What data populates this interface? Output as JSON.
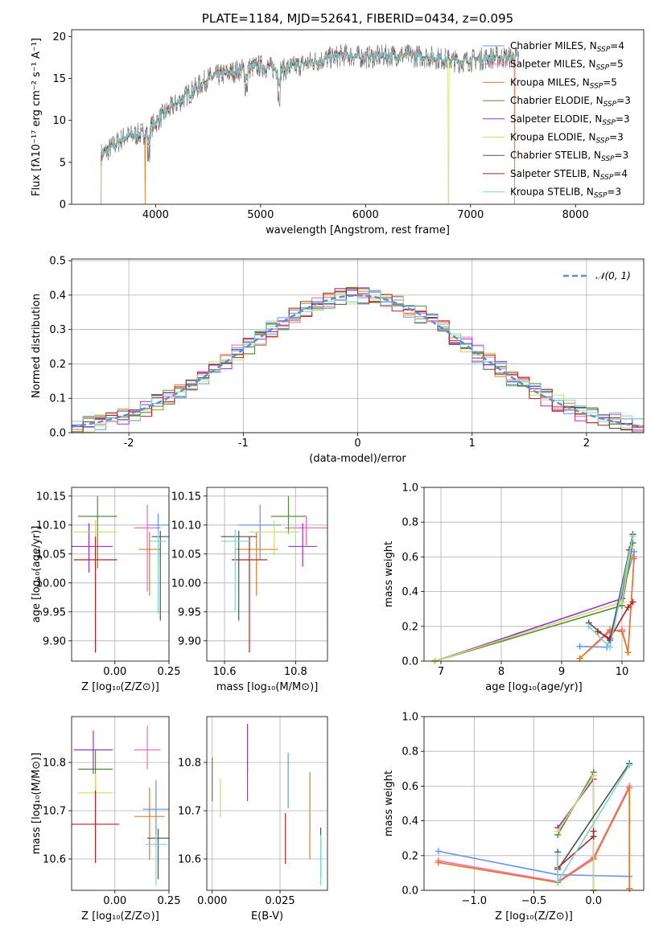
{
  "colors": {
    "Chabrier MILES": "#6495ed",
    "Salpeter MILES": "#ff69b4",
    "Kroupa MILES": "#e07b24",
    "Chabrier ELODIE": "#5a8a3c",
    "Salpeter ELODIE": "#9932cc",
    "Kroupa ELODIE": "#c8e066",
    "Chabrier STELIB": "#505050",
    "Salpeter STELIB": "#b22222",
    "Kroupa STELIB": "#7fd4d4",
    "normal": "#5b8fd6"
  },
  "chart_data": [
    {
      "id": "spectrum",
      "type": "line",
      "title": "PLATE=1184, MJD=52641, FIBERID=0434, z=0.095",
      "xlabel": "wavelength [Angstrom, rest frame]",
      "ylabel": "Flux [fλ10⁻¹⁷ erg cm⁻² s⁻¹ A⁻¹]",
      "xlim": [
        3200,
        8650
      ],
      "ylim": [
        0,
        20.8
      ],
      "xticks": [
        4000,
        5000,
        6000,
        7000,
        8000
      ],
      "yticks": [
        0,
        5,
        10,
        15,
        20
      ],
      "grid": false,
      "legend_position": "top-right",
      "legend": [
        {
          "name": "Chabrier MILES",
          "nssp": "4"
        },
        {
          "name": "Salpeter MILES",
          "nssp": "5"
        },
        {
          "name": "Kroupa MILES",
          "nssp": "5"
        },
        {
          "name": "Chabrier ELODIE",
          "nssp": "3"
        },
        {
          "name": "Salpeter ELODIE",
          "nssp": "3"
        },
        {
          "name": "Kroupa ELODIE",
          "nssp": "3"
        },
        {
          "name": "Chabrier STELIB",
          "nssp": "3"
        },
        {
          "name": "Salpeter STELIB",
          "nssp": "4"
        },
        {
          "name": "Kroupa STELIB",
          "nssp": "3"
        }
      ],
      "continuum": {
        "x": [
          3500,
          3700,
          3900,
          4100,
          4300,
          4500,
          4800,
          5000,
          5200,
          5500,
          5800,
          6000,
          6300,
          6600,
          6900,
          7200,
          7450
        ],
        "y": [
          6.0,
          8.0,
          8.5,
          11.0,
          13.0,
          15.0,
          16.0,
          16.5,
          16.0,
          17.0,
          17.8,
          17.5,
          17.8,
          17.6,
          17.0,
          17.5,
          17.5
        ]
      },
      "noise_amplitude": 1.4,
      "dropouts": [
        {
          "x": 3480,
          "series": "Kroupa MILES"
        },
        {
          "x": 3900,
          "series": "Kroupa MILES"
        },
        {
          "x": 6790,
          "series": "Kroupa ELODIE"
        },
        {
          "x": 7420,
          "series": "Kroupa MILES"
        }
      ]
    },
    {
      "id": "residuals",
      "type": "line",
      "xlabel": "(data-model)/error",
      "ylabel": "Normed distribution",
      "xlim": [
        -2.5,
        2.5
      ],
      "ylim": [
        0,
        0.505
      ],
      "xticks": [
        -2,
        -1,
        0,
        1,
        2
      ],
      "yticks": [
        0.0,
        0.1,
        0.2,
        0.3,
        0.4,
        0.5
      ],
      "grid": true,
      "legend_position": "top-right",
      "legend_label": "𝒩(0, 1)",
      "bin_width": 0.1,
      "histogram_noise": 0.025
    },
    {
      "id": "age_vs_Z",
      "type": "scatter",
      "xlabel": "Z [log₁₀(Z/Z⊙)]",
      "ylabel": "age  [log₁₀(age/yr)]",
      "xlim": [
        -0.2,
        0.25
      ],
      "ylim": [
        9.865,
        10.165
      ],
      "xticks": [
        0.0,
        0.25
      ],
      "xticklabels": [
        "0.00",
        "0.25"
      ],
      "yticks": [
        9.9,
        9.95,
        10.0,
        10.05,
        10.1,
        10.15
      ],
      "yticklabels": [
        "9.90",
        "9.95",
        "10.00",
        "10.05",
        "10.10",
        "10.15"
      ],
      "grid": true,
      "points": [
        {
          "series": "Chabrier MILES",
          "x": 0.2,
          "y": 10.1,
          "xerr": 0.05,
          "yerr": [
            0.07,
            0.02
          ]
        },
        {
          "series": "Salpeter MILES",
          "x": 0.15,
          "y": 10.095,
          "xerr": 0.06,
          "yerr": [
            0.11,
            0.04
          ]
        },
        {
          "series": "Kroupa MILES",
          "x": 0.16,
          "y": 10.058,
          "xerr": 0.05,
          "yerr": [
            0.08,
            0.03
          ]
        },
        {
          "series": "Chabrier ELODIE",
          "x": -0.08,
          "y": 10.115,
          "xerr": 0.09,
          "yerr": [
            0.09,
            0.035
          ]
        },
        {
          "series": "Salpeter ELODIE",
          "x": -0.12,
          "y": 10.063,
          "xerr": 0.11,
          "yerr": [
            0.045,
            0.04
          ]
        },
        {
          "series": "Kroupa ELODIE",
          "x": -0.09,
          "y": 10.088,
          "xerr": 0.1,
          "yerr": [
            0.06,
            0.02
          ]
        },
        {
          "series": "Chabrier STELIB",
          "x": 0.21,
          "y": 10.08,
          "xerr": 0.04,
          "yerr": [
            0.145,
            0.01
          ]
        },
        {
          "series": "Salpeter STELIB",
          "x": -0.09,
          "y": 10.04,
          "xerr": 0.1,
          "yerr": [
            0.16,
            0.04
          ]
        },
        {
          "series": "Kroupa STELIB",
          "x": 0.2,
          "y": 10.072,
          "xerr": 0.04,
          "yerr": [
            0.125,
            0.02
          ]
        }
      ]
    },
    {
      "id": "age_vs_mass",
      "type": "scatter",
      "xlabel": "mass [log₁₀(M/M⊙)]",
      "ylabel": "",
      "xlim": [
        10.55,
        10.89
      ],
      "ylim": [
        9.865,
        10.165
      ],
      "xticks": [
        10.6,
        10.8
      ],
      "xticklabels": [
        "10.6",
        "10.8"
      ],
      "yticks": [
        9.9,
        9.95,
        10.0,
        10.05,
        10.1,
        10.15
      ],
      "yticklabels": [
        "9.90",
        "9.95",
        "10.00",
        "10.05",
        "10.10",
        "10.15"
      ],
      "grid": true,
      "points": [
        {
          "series": "Chabrier MILES",
          "x": 10.7,
          "y": 10.1,
          "xerr": 0.06,
          "yerr": [
            0.06,
            0.035
          ]
        },
        {
          "series": "Salpeter MILES",
          "x": 10.83,
          "y": 10.095,
          "xerr": 0.06,
          "yerr": [
            0.03,
            0.02
          ]
        },
        {
          "series": "Kroupa MILES",
          "x": 10.69,
          "y": 10.058,
          "xerr": 0.06,
          "yerr": [
            0.08,
            0.03
          ]
        },
        {
          "series": "Chabrier ELODIE",
          "x": 10.78,
          "y": 10.115,
          "xerr": 0.05,
          "yerr": [
            0.03,
            0.035
          ]
        },
        {
          "series": "Salpeter ELODIE",
          "x": 10.82,
          "y": 10.063,
          "xerr": 0.04,
          "yerr": [
            0.035,
            0.04
          ]
        },
        {
          "series": "Kroupa ELODIE",
          "x": 10.74,
          "y": 10.088,
          "xerr": 0.07,
          "yerr": [
            0.04,
            0.02
          ]
        },
        {
          "series": "Chabrier STELIB",
          "x": 10.64,
          "y": 10.08,
          "xerr": 0.05,
          "yerr": [
            0.145,
            0.01
          ]
        },
        {
          "series": "Salpeter STELIB",
          "x": 10.67,
          "y": 10.04,
          "xerr": 0.05,
          "yerr": [
            0.16,
            0.04
          ]
        },
        {
          "series": "Kroupa STELIB",
          "x": 10.63,
          "y": 10.072,
          "xerr": 0.04,
          "yerr": [
            0.12,
            0.02
          ]
        }
      ]
    },
    {
      "id": "weight_vs_age",
      "type": "line",
      "xlabel": "age  [log₁₀(age/yr)]",
      "ylabel": "mass weight",
      "xlim": [
        6.72,
        10.36
      ],
      "ylim": [
        0,
        1.0
      ],
      "xticks": [
        7,
        8,
        9,
        10
      ],
      "xticklabels": [
        "7",
        "8",
        "9",
        "10"
      ],
      "yticks": [
        0.0,
        0.2,
        0.4,
        0.6,
        0.8,
        1.0
      ],
      "yticklabels": [
        "0.0",
        "0.2",
        "0.4",
        "0.6",
        "0.8",
        "1.0"
      ],
      "grid": true,
      "series": [
        {
          "name": "Chabrier MILES",
          "x": [
            9.3,
            9.75,
            10.2
          ],
          "y": [
            0.085,
            0.08,
            0.63
          ]
        },
        {
          "name": "Salpeter MILES",
          "x": [
            9.3,
            9.8,
            10.0,
            10.1,
            10.2
          ],
          "y": [
            0.015,
            0.17,
            0.18,
            0.05,
            0.6
          ]
        },
        {
          "name": "Kroupa MILES",
          "x": [
            9.3,
            9.8,
            10.0,
            10.1,
            10.2
          ],
          "y": [
            0.015,
            0.18,
            0.17,
            0.05,
            0.59
          ]
        },
        {
          "name": "Chabrier ELODIE",
          "x": [
            6.9,
            10.0,
            10.18
          ],
          "y": [
            0.0,
            0.32,
            0.68
          ]
        },
        {
          "name": "Salpeter ELODIE",
          "x": [
            6.9,
            10.0,
            10.12
          ],
          "y": [
            0.0,
            0.36,
            0.64
          ]
        },
        {
          "name": "Kroupa ELODIE",
          "x": [
            6.9,
            10.0,
            10.15
          ],
          "y": [
            0.0,
            0.34,
            0.66
          ]
        },
        {
          "name": "Chabrier STELIB",
          "x": [
            9.45,
            9.8,
            10.18
          ],
          "y": [
            0.22,
            0.12,
            0.73
          ]
        },
        {
          "name": "Salpeter STELIB",
          "x": [
            9.6,
            9.8,
            10.1,
            10.18
          ],
          "y": [
            0.17,
            0.13,
            0.31,
            0.34
          ]
        },
        {
          "name": "Kroupa STELIB",
          "x": [
            9.45,
            9.8,
            10.18
          ],
          "y": [
            0.2,
            0.08,
            0.72
          ]
        }
      ]
    },
    {
      "id": "mass_vs_Z",
      "type": "scatter",
      "xlabel": "Z [log₁₀(Z/Z⊙)]",
      "ylabel": "mass [log₁₀(M/M⊙)]",
      "xlim": [
        -0.2,
        0.25
      ],
      "ylim": [
        10.535,
        10.895
      ],
      "xticks": [
        0.0,
        0.25
      ],
      "xticklabels": [
        "0.00",
        "0.25"
      ],
      "yticks": [
        10.6,
        10.7,
        10.8
      ],
      "yticklabels": [
        "10.6",
        "10.7",
        "10.8"
      ],
      "grid": true,
      "points": [
        {
          "series": "Chabrier MILES",
          "x": 0.19,
          "y": 10.703,
          "xerr": 0.06,
          "yerr": [
            0.06,
            0.06
          ]
        },
        {
          "series": "Salpeter MILES",
          "x": 0.15,
          "y": 10.826,
          "xerr": 0.06,
          "yerr": [
            0.04,
            0.05
          ]
        },
        {
          "series": "Kroupa MILES",
          "x": 0.16,
          "y": 10.688,
          "xerr": 0.07,
          "yerr": [
            0.09,
            0.06
          ]
        },
        {
          "series": "Chabrier ELODIE",
          "x": -0.09,
          "y": 10.786,
          "xerr": 0.08,
          "yerr": [
            0.06,
            0.04
          ]
        },
        {
          "series": "Salpeter ELODIE",
          "x": -0.1,
          "y": 10.826,
          "xerr": 0.09,
          "yerr": [
            0.05,
            0.04
          ]
        },
        {
          "series": "Kroupa ELODIE",
          "x": -0.09,
          "y": 10.737,
          "xerr": 0.08,
          "yerr": [
            0.05,
            0.04
          ]
        },
        {
          "series": "Chabrier STELIB",
          "x": 0.2,
          "y": 10.643,
          "xerr": 0.05,
          "yerr": [
            0.085,
            0.02
          ]
        },
        {
          "series": "Salpeter STELIB",
          "x": -0.09,
          "y": 10.672,
          "xerr": 0.11,
          "yerr": [
            0.08,
            0.07
          ]
        },
        {
          "series": "Kroupa STELIB",
          "x": 0.19,
          "y": 10.63,
          "xerr": 0.05,
          "yerr": [
            0.085,
            0.02
          ]
        }
      ]
    },
    {
      "id": "mass_vs_EBV",
      "type": "scatter",
      "xlabel": "E(B-V)",
      "ylabel": "",
      "xlim": [
        -0.002,
        0.0425
      ],
      "ylim": [
        10.535,
        10.895
      ],
      "xticks": [
        0.0,
        0.025
      ],
      "xticklabels": [
        "0.000",
        "0.025"
      ],
      "yticks": [
        10.6,
        10.7,
        10.8
      ],
      "yticklabels": [
        "10.6",
        "10.7",
        "10.8"
      ],
      "grid": true,
      "points": [
        {
          "series": "Chabrier MILES",
          "x": 0.028,
          "y": 10.76,
          "xerr": 0,
          "yerr": [
            0.055,
            0.06
          ]
        },
        {
          "series": "Salpeter MILES",
          "x": 0.013,
          "y": 10.826,
          "xerr": 0,
          "yerr": [
            0.05,
            0.05
          ]
        },
        {
          "series": "Kroupa MILES",
          "x": 0.036,
          "y": 10.69,
          "xerr": 0,
          "yerr": [
            0.09,
            0.09
          ]
        },
        {
          "series": "Chabrier ELODIE",
          "x": 0.0,
          "y": 10.77,
          "xerr": 0,
          "yerr": [
            0.05,
            0.04
          ]
        },
        {
          "series": "Salpeter ELODIE",
          "x": 0.013,
          "y": 10.8,
          "xerr": 0,
          "yerr": [
            0.08,
            0.08
          ]
        },
        {
          "series": "Kroupa ELODIE",
          "x": 0.003,
          "y": 10.726,
          "xerr": 0,
          "yerr": [
            0.04,
            0.04
          ]
        },
        {
          "series": "Chabrier STELIB",
          "x": 0.04,
          "y": 10.63,
          "xerr": 0,
          "yerr": [
            0.07,
            0.035
          ]
        },
        {
          "series": "Salpeter STELIB",
          "x": 0.027,
          "y": 10.65,
          "xerr": 0,
          "yerr": [
            0.06,
            0.045
          ]
        },
        {
          "series": "Kroupa STELIB",
          "x": 0.04,
          "y": 10.6,
          "xerr": 0,
          "yerr": [
            0.055,
            0.05
          ]
        }
      ]
    },
    {
      "id": "weight_vs_Z",
      "type": "line",
      "xlabel": "Z [log₁₀(Z/Z⊙)]",
      "ylabel": "mass weight",
      "xlim": [
        -1.42,
        0.42
      ],
      "ylim": [
        0,
        1.0
      ],
      "xticks": [
        -1.0,
        -0.5,
        0.0
      ],
      "xticklabels": [
        "−1.0",
        "−0.5",
        "0.0"
      ],
      "yticks": [
        0.0,
        0.2,
        0.4,
        0.6,
        0.8,
        1.0
      ],
      "yticklabels": [
        "0.0",
        "0.2",
        "0.4",
        "0.6",
        "0.8",
        "1.0"
      ],
      "grid": true,
      "series": [
        {
          "name": "Chabrier MILES",
          "x": [
            -1.3,
            -0.3,
            0.3
          ],
          "y": [
            0.225,
            0.09,
            0.08
          ]
        },
        {
          "name": "Salpeter MILES",
          "x": [
            -1.3,
            -0.3,
            0.0,
            0.3,
            0.3
          ],
          "y": [
            0.17,
            0.05,
            0.19,
            0.6,
            0.01
          ]
        },
        {
          "name": "Kroupa MILES",
          "x": [
            -1.3,
            -0.3,
            0.0,
            0.3,
            0.3
          ],
          "y": [
            0.16,
            0.045,
            0.18,
            0.59,
            0.01
          ]
        },
        {
          "name": "Chabrier ELODIE",
          "x": [
            -0.3,
            0.0,
            0.0
          ],
          "y": [
            0.32,
            0.68,
            0.0
          ]
        },
        {
          "name": "Salpeter ELODIE",
          "x": [
            -0.3,
            0.0,
            0.0
          ],
          "y": [
            0.36,
            0.64,
            0.0
          ]
        },
        {
          "name": "Kroupa ELODIE",
          "x": [
            -0.3,
            0.0,
            0.0
          ],
          "y": [
            0.34,
            0.66,
            0.0
          ]
        },
        {
          "name": "Chabrier STELIB",
          "x": [
            -0.3,
            -0.3,
            0.3
          ],
          "y": [
            0.22,
            0.12,
            0.73
          ]
        },
        {
          "name": "Salpeter STELIB",
          "x": [
            -0.3,
            0.0,
            0.0
          ],
          "y": [
            0.13,
            0.31,
            0.34
          ]
        },
        {
          "name": "Kroupa STELIB",
          "x": [
            -0.3,
            -0.3,
            0.3
          ],
          "y": [
            0.2,
            0.05,
            0.72
          ]
        }
      ]
    }
  ]
}
